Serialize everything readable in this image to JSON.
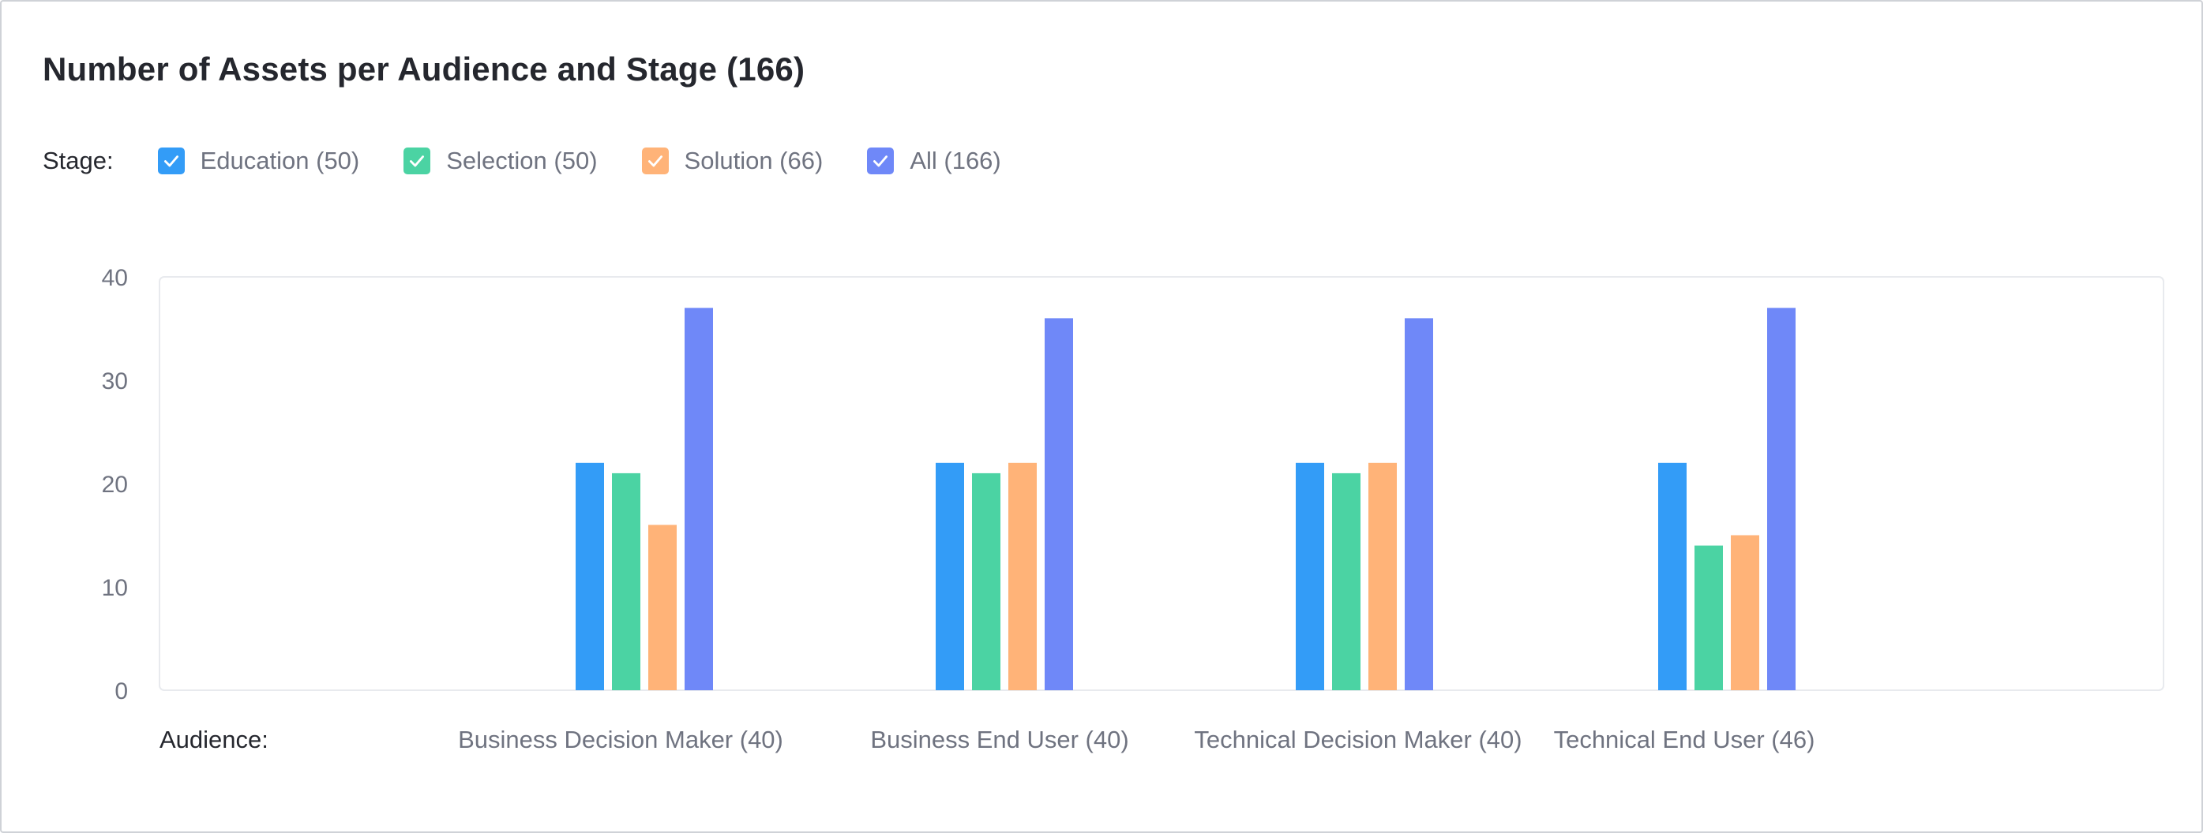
{
  "colors": {
    "education": "#339cf7",
    "selection": "#4bd3a3",
    "solution": "#ffb378",
    "all": "#6f88f8"
  },
  "chart_data": {
    "type": "bar",
    "title": "Number of Assets per Audience and Stage (166)",
    "legend_title": "Stage:",
    "x_axis_label": "Audience:",
    "categories": [
      "Business Decision Maker (40)",
      "Business End User (40)",
      "Technical Decision Maker (40)",
      "Technical End User (46)"
    ],
    "series": [
      {
        "name": "Education (50)",
        "color_key": "education",
        "checked": true,
        "values": [
          22,
          22,
          22,
          22
        ]
      },
      {
        "name": "Selection (50)",
        "color_key": "selection",
        "checked": true,
        "values": [
          21,
          21,
          21,
          14
        ]
      },
      {
        "name": "Solution (66)",
        "color_key": "solution",
        "checked": true,
        "values": [
          16,
          22,
          22,
          15
        ]
      },
      {
        "name": "All (166)",
        "color_key": "all",
        "checked": true,
        "values": [
          37,
          36,
          36,
          37
        ]
      }
    ],
    "y_ticks": [
      0,
      10,
      20,
      30,
      40
    ],
    "ylim": [
      0,
      40
    ],
    "grid": false,
    "legend_position": "top-left"
  }
}
